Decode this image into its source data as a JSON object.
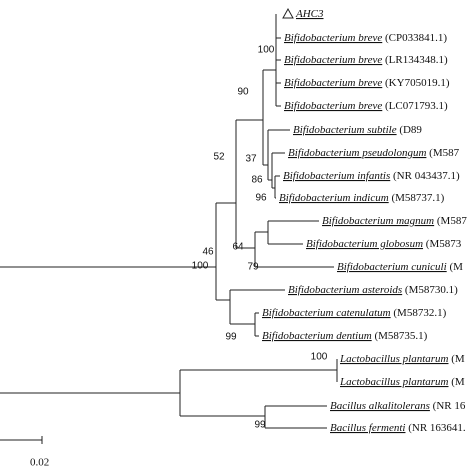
{
  "leaves": [
    {
      "name": "AHC3"
    },
    {
      "name": "Bifidobacterium breve",
      "accession": "(CP033841.1)"
    },
    {
      "name": "Bifidobacterium breve",
      "accession": "(LR134348.1)"
    },
    {
      "name": "Bifidobacterium breve",
      "accession": "(KY705019.1)"
    },
    {
      "name": "Bifidobacterium breve",
      "accession": "(LC071793.1)"
    },
    {
      "name": "Bifidobacterium subtile",
      "accession": "(D89"
    },
    {
      "name": "Bifidobacterium pseudolongum",
      "accession": "(M587"
    },
    {
      "name": "Bifidobacterium infantis",
      "accession": "(NR 043437.1)"
    },
    {
      "name": "Bifidobacterium indicum",
      "accession": "(M58737.1)"
    },
    {
      "name": "Bifidobacterium magnum",
      "accession": "(M587"
    },
    {
      "name": "Bifidobacterium globosum",
      "accession": "(M5873"
    },
    {
      "name": "Bifidobacterium cuniculi",
      "accession": "(M"
    },
    {
      "name": "Bifidobacterium asteroids",
      "accession": "(M58730.1)"
    },
    {
      "name": "Bifidobacterium catenulatum",
      "accession": "(M58732.1)"
    },
    {
      "name": "Bifidobacterium dentium",
      "accession": "(M58735.1)"
    },
    {
      "name": "Lactobacillus plantarum",
      "accession": "(M"
    },
    {
      "name": "Lactobacillus plantarum",
      "accession": "(M"
    },
    {
      "name": "Bacillus alkalitolerans",
      "accession": "(NR 16"
    },
    {
      "name": "Bacillus fermenti",
      "accession": "(NR 163641."
    }
  ],
  "bootstrap": [
    100,
    90,
    52,
    37,
    86,
    96,
    46,
    64,
    79,
    100,
    99,
    100,
    99
  ],
  "scale_bar": "0.02"
}
